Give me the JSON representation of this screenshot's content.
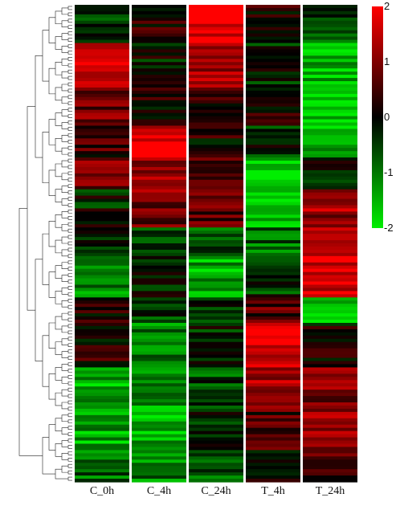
{
  "chart_data": {
    "type": "heatmap",
    "columns": [
      "C_0h",
      "C_4h",
      "C_24h",
      "T_4h",
      "T_24h"
    ],
    "color_scale": {
      "min": -2,
      "max": 2,
      "ticks": [
        "2",
        "1",
        "0",
        "-1",
        "-2"
      ],
      "low_color": "#00ee00",
      "mid_color": "#000000",
      "high_color": "#ff0000"
    },
    "rows": 150,
    "clusters": [
      {
        "rows": 12,
        "values": [
          -0.4,
          0.2,
          1.8,
          0.1,
          -0.5
        ]
      },
      {
        "rows": 14,
        "values": [
          1.6,
          -0.1,
          1.3,
          -0.2,
          -1.6
        ]
      },
      {
        "rows": 12,
        "values": [
          0.8,
          0.1,
          0.5,
          0.2,
          -1.8
        ]
      },
      {
        "rows": 10,
        "values": [
          0.4,
          1.7,
          0.2,
          -0.3,
          -1.5
        ]
      },
      {
        "rows": 10,
        "values": [
          0.9,
          1.1,
          0.7,
          -1.8,
          -0.2
        ]
      },
      {
        "rows": 12,
        "values": [
          -0.2,
          0.9,
          0.6,
          -1.8,
          1.2
        ]
      },
      {
        "rows": 10,
        "values": [
          -0.3,
          -0.4,
          -0.6,
          -0.8,
          1.8
        ]
      },
      {
        "rows": 12,
        "values": [
          -1.2,
          -0.2,
          -1.4,
          -0.4,
          1.7
        ]
      },
      {
        "rows": 8,
        "values": [
          0.3,
          -0.5,
          -0.2,
          0.6,
          -1.8
        ]
      },
      {
        "rows": 14,
        "values": [
          0.2,
          -1.0,
          -0.3,
          1.8,
          0.1
        ]
      },
      {
        "rows": 14,
        "values": [
          -1.5,
          -1.3,
          -0.6,
          1.2,
          0.9
        ]
      },
      {
        "rows": 12,
        "values": [
          -1.4,
          -1.5,
          -0.3,
          0.5,
          1.3
        ]
      },
      {
        "rows": 10,
        "values": [
          -0.8,
          -1.0,
          -0.7,
          0.2,
          0.6
        ]
      }
    ]
  }
}
